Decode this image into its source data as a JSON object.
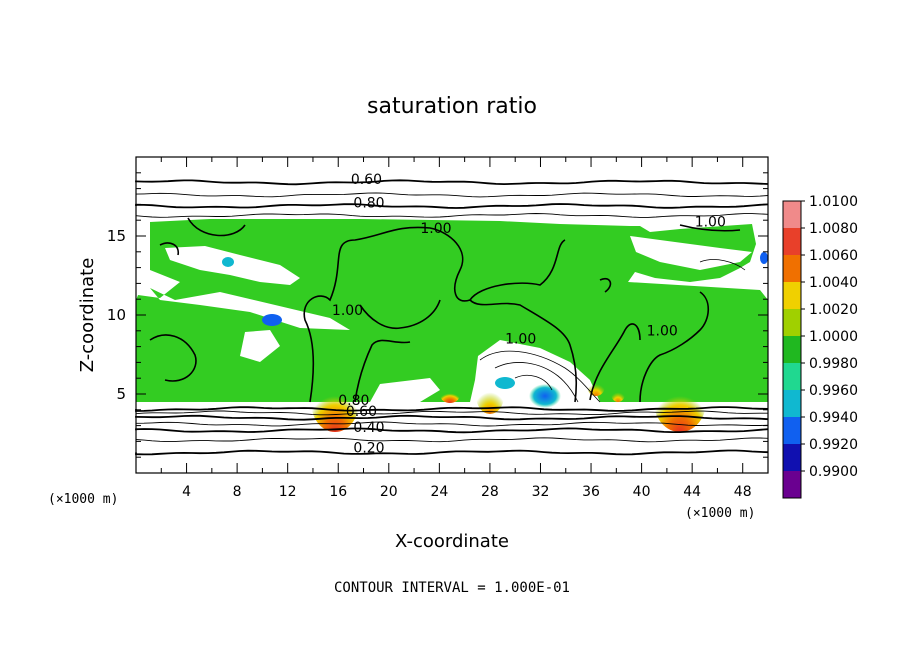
{
  "chart_data": {
    "type": "heatmap",
    "title": "saturation ratio",
    "xlabel": "X-coordinate",
    "ylabel": "Z-coordinate",
    "x_units_left": "(×1000 m)",
    "x_units_right": "(×1000 m)",
    "xlim": [
      0,
      50
    ],
    "ylim": [
      0,
      20
    ],
    "x_ticks": [
      4,
      8,
      12,
      16,
      20,
      24,
      28,
      32,
      36,
      40,
      44,
      48
    ],
    "y_ticks": [
      5,
      10,
      15
    ],
    "footer": "CONTOUR INTERVAL = 1.000E-01",
    "colorbar": {
      "min": 0.99,
      "max": 1.01,
      "labels": [
        "1.0100",
        "1.0080",
        "1.0060",
        "1.0040",
        "1.0020",
        "1.0000",
        "0.9980",
        "0.9960",
        "0.9940",
        "0.9920",
        "0.9900"
      ],
      "colors": [
        "#f08a8a",
        "#e8402a",
        "#f07000",
        "#f0d000",
        "#a0d000",
        "#20b820",
        "#20d890",
        "#10b8d0",
        "#1060f0",
        "#1010b0",
        "#6a0090"
      ]
    },
    "contour_labels": [
      {
        "text": "0.60",
        "x": 17.0,
        "y": 18.3
      },
      {
        "text": "0.80",
        "x": 17.2,
        "y": 16.8
      },
      {
        "text": "1.00",
        "x": 22.5,
        "y": 15.2
      },
      {
        "text": "1.00",
        "x": 44.2,
        "y": 15.6
      },
      {
        "text": "1.00",
        "x": 15.5,
        "y": 10.0
      },
      {
        "text": "1.00",
        "x": 29.2,
        "y": 8.2
      },
      {
        "text": "1.00",
        "x": 40.4,
        "y": 8.7
      },
      {
        "text": "0.80",
        "x": 16.0,
        "y": 4.3
      },
      {
        "text": "0.60",
        "x": 16.6,
        "y": 3.6
      },
      {
        "text": "0.40",
        "x": 17.2,
        "y": 2.6
      },
      {
        "text": "0.20",
        "x": 17.2,
        "y": 1.3
      }
    ],
    "isolines": [
      {
        "level": "0.60",
        "y": 18.4
      },
      {
        "level": "0.70",
        "y": 17.6
      },
      {
        "level": "0.80",
        "y": 16.9
      },
      {
        "level": "0.90",
        "y": 16.3
      },
      {
        "level": "0.80",
        "y": 4.05
      },
      {
        "level": "0.70",
        "y": 3.8
      },
      {
        "level": "0.60",
        "y": 3.5
      },
      {
        "level": "0.50",
        "y": 3.1
      },
      {
        "level": "0.40",
        "y": 2.7
      },
      {
        "level": "0.30",
        "y": 2.1
      },
      {
        "level": "0.20",
        "y": 1.3
      }
    ],
    "hotspots": [
      {
        "x": 16.0,
        "z": 4.6,
        "value": 1.006
      },
      {
        "x": 43.5,
        "z": 4.6,
        "value": 1.006
      },
      {
        "x": 28.0,
        "z": 4.9,
        "value": 1.004
      },
      {
        "x": 24.8,
        "z": 4.8,
        "value": 1.004
      },
      {
        "x": 32.0,
        "z": 4.9,
        "value": 0.994
      }
    ]
  }
}
